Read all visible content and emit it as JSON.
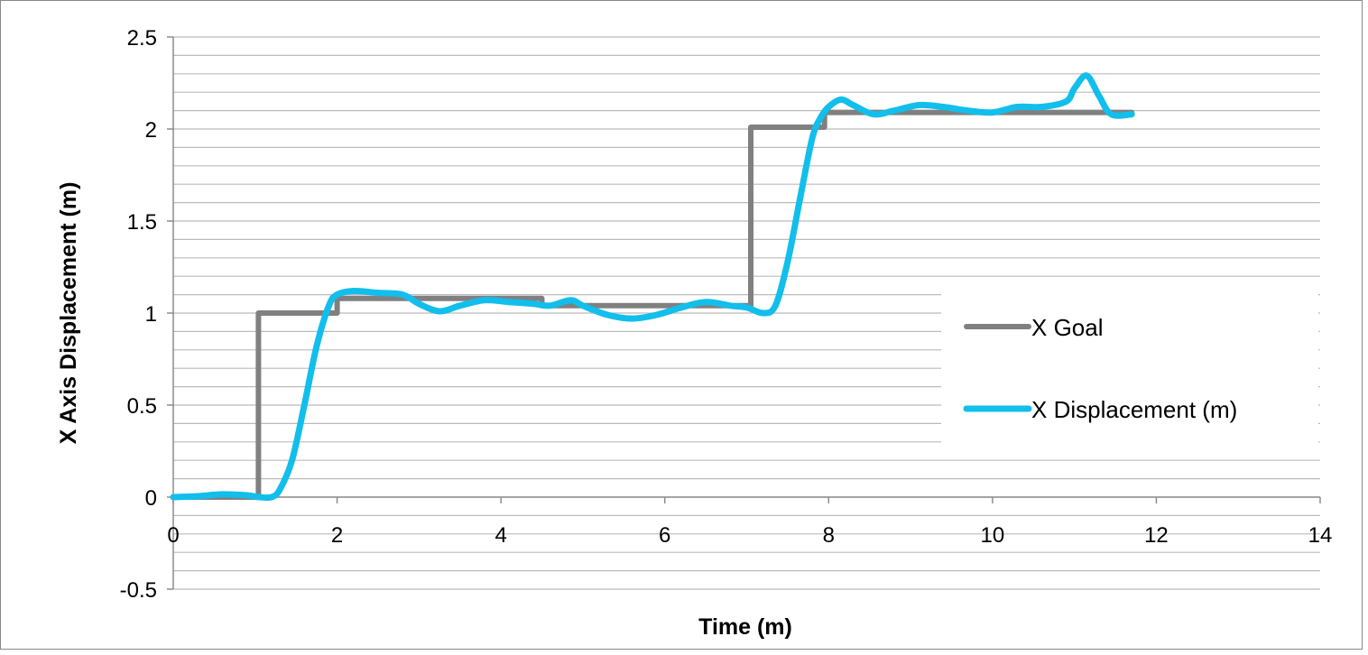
{
  "chart_data": {
    "type": "line",
    "title": "",
    "xlabel": "Time (m)",
    "ylabel": "X Axis Displacement (m)",
    "xlim": [
      0,
      14
    ],
    "ylim": [
      -0.5,
      2.5
    ],
    "x_ticks": [
      0,
      2,
      4,
      6,
      8,
      10,
      12,
      14
    ],
    "x_tick_labels": [
      "0",
      "2",
      "4",
      "6",
      "8",
      "10",
      "12",
      "14"
    ],
    "y_ticks": [
      -0.5,
      0,
      0.5,
      1,
      1.5,
      2,
      2.5
    ],
    "y_tick_labels": [
      "-0.5",
      "0",
      "0.5",
      "1",
      "1.5",
      "2",
      "2.5"
    ],
    "y_minor_step": 0.1,
    "grid": true,
    "legend_position": "right",
    "series": [
      {
        "name": "X Goal",
        "color": "#808080",
        "points": [
          [
            0,
            0
          ],
          [
            1.04,
            0
          ],
          [
            1.04,
            1.0
          ],
          [
            2.0,
            1.0
          ],
          [
            2.0,
            1.08
          ],
          [
            4.5,
            1.08
          ],
          [
            4.5,
            1.04
          ],
          [
            7.05,
            1.04
          ],
          [
            7.05,
            2.01
          ],
          [
            7.95,
            2.01
          ],
          [
            7.95,
            2.09
          ],
          [
            11.7,
            2.09
          ]
        ]
      },
      {
        "name": "X Displacement (m)",
        "color": "#12BEEB",
        "points": [
          [
            0,
            0
          ],
          [
            0.3,
            0.005
          ],
          [
            0.6,
            0.015
          ],
          [
            0.9,
            0.01
          ],
          [
            1.05,
            0.0
          ],
          [
            1.2,
            0.0
          ],
          [
            1.3,
            0.04
          ],
          [
            1.45,
            0.2
          ],
          [
            1.6,
            0.5
          ],
          [
            1.75,
            0.82
          ],
          [
            1.9,
            1.04
          ],
          [
            2.0,
            1.1
          ],
          [
            2.2,
            1.12
          ],
          [
            2.5,
            1.11
          ],
          [
            2.8,
            1.1
          ],
          [
            3.0,
            1.05
          ],
          [
            3.25,
            1.01
          ],
          [
            3.5,
            1.04
          ],
          [
            3.8,
            1.07
          ],
          [
            4.1,
            1.06
          ],
          [
            4.4,
            1.05
          ],
          [
            4.6,
            1.04
          ],
          [
            4.85,
            1.07
          ],
          [
            5.0,
            1.04
          ],
          [
            5.3,
            0.99
          ],
          [
            5.6,
            0.97
          ],
          [
            5.9,
            0.99
          ],
          [
            6.2,
            1.03
          ],
          [
            6.5,
            1.06
          ],
          [
            6.8,
            1.04
          ],
          [
            7.0,
            1.03
          ],
          [
            7.2,
            1.0
          ],
          [
            7.35,
            1.04
          ],
          [
            7.5,
            1.28
          ],
          [
            7.65,
            1.62
          ],
          [
            7.8,
            1.95
          ],
          [
            7.9,
            2.06
          ],
          [
            8.0,
            2.12
          ],
          [
            8.15,
            2.16
          ],
          [
            8.3,
            2.13
          ],
          [
            8.55,
            2.08
          ],
          [
            8.8,
            2.1
          ],
          [
            9.1,
            2.13
          ],
          [
            9.4,
            2.12
          ],
          [
            9.7,
            2.1
          ],
          [
            10.0,
            2.09
          ],
          [
            10.3,
            2.12
          ],
          [
            10.6,
            2.12
          ],
          [
            10.9,
            2.15
          ],
          [
            11.0,
            2.22
          ],
          [
            11.15,
            2.29
          ],
          [
            11.3,
            2.18
          ],
          [
            11.45,
            2.08
          ],
          [
            11.7,
            2.08
          ]
        ]
      }
    ]
  },
  "colors": {
    "frame_border": "#888888",
    "grid": "#bbbbbb",
    "axis": "#8c8c8c"
  }
}
